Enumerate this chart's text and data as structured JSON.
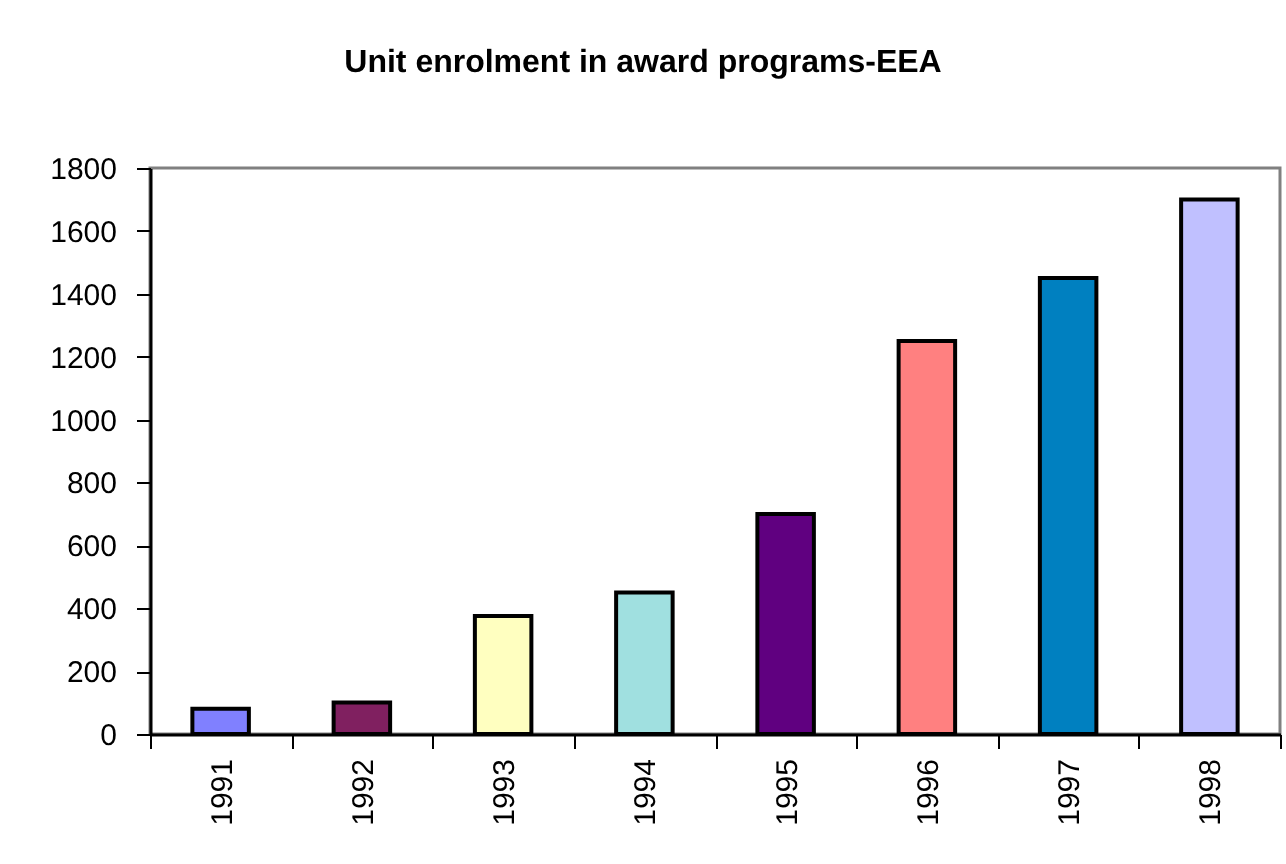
{
  "chart_data": {
    "type": "bar",
    "title": "Unit enrolment in award programs-EEA",
    "categories": [
      "1991",
      "1992",
      "1993",
      "1994",
      "1995",
      "1996",
      "1997",
      "1998"
    ],
    "values": [
      80,
      100,
      375,
      450,
      700,
      1250,
      1450,
      1700
    ],
    "colors": [
      "#8080ff",
      "#802060",
      "#ffffc0",
      "#a0e0e0",
      "#600080",
      "#ff8080",
      "#0080c0",
      "#c0c0ff"
    ],
    "ylim": [
      0,
      1800
    ],
    "yticks": [
      0,
      200,
      400,
      600,
      800,
      1000,
      1200,
      1400,
      1600,
      1800
    ]
  }
}
